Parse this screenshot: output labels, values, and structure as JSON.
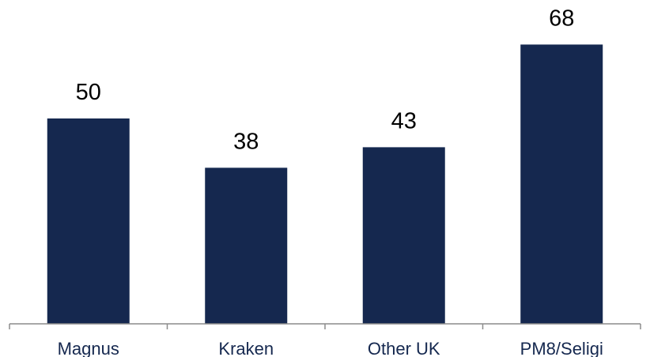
{
  "chart_data": {
    "type": "bar",
    "categories": [
      "Magnus",
      "Kraken",
      "Other UK",
      "PM8/Seligi"
    ],
    "values": [
      50,
      38,
      43,
      68
    ],
    "title": "",
    "xlabel": "",
    "ylabel": "",
    "ylim": [
      0,
      72
    ],
    "grid": false,
    "legend": "none",
    "data_labels": true,
    "colors": {
      "bar": "#15284F",
      "tick_label": "#15284F",
      "value_label": "#000000",
      "axis": "#8C8C8C"
    }
  }
}
